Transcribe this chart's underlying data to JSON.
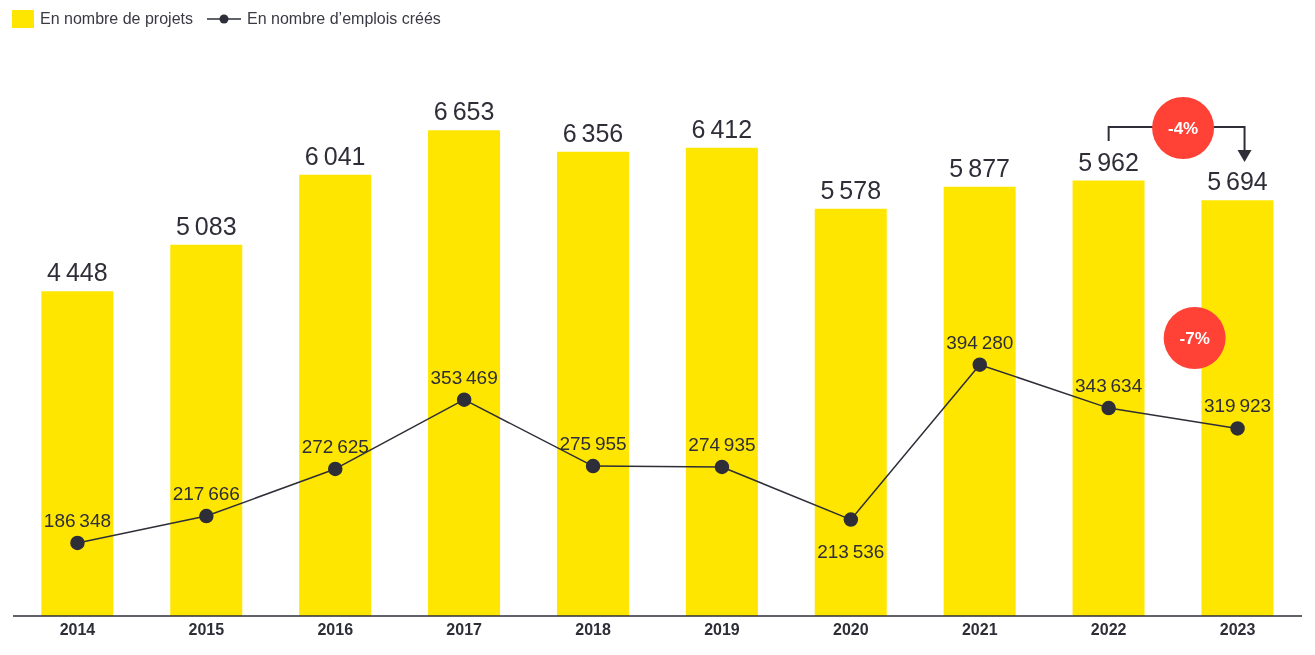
{
  "chart_data": {
    "type": "bar",
    "categories": [
      "2014",
      "2015",
      "2016",
      "2017",
      "2018",
      "2019",
      "2020",
      "2021",
      "2022",
      "2023"
    ],
    "series": [
      {
        "name": "En nombre de projets",
        "color": "#ffe600",
        "values": [
          4448,
          5083,
          6041,
          6653,
          6356,
          6412,
          5578,
          5877,
          5962,
          5694
        ]
      },
      {
        "name": "En nombre d’emplois créés",
        "type": "line",
        "axis": "y2",
        "color": "#2e2e38",
        "values": [
          186348,
          217666,
          272625,
          353469,
          275955,
          274935,
          213536,
          394280,
          343634,
          319923
        ]
      }
    ],
    "tick_labels": "x",
    "data_labels": true,
    "legend": "top left",
    "marker": "circle",
    "line_style": "solid",
    "annotations": [
      "-4%",
      "-7%"
    ]
  }
}
